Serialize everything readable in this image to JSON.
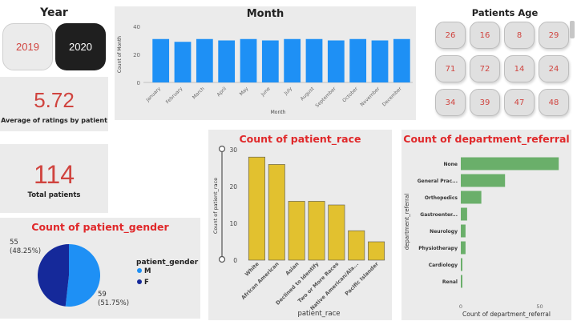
{
  "year_slicer": {
    "title": "Year",
    "options": [
      "2019",
      "2020"
    ],
    "selected": "2020"
  },
  "rating_card": {
    "value": "5.72",
    "label": "Average of ratings by patient"
  },
  "patients_card": {
    "value": "114",
    "label": "Total patients"
  },
  "age_slicer": {
    "title": "Patients Age",
    "values": [
      "26",
      "16",
      "8",
      "29",
      "71",
      "72",
      "14",
      "24",
      "34",
      "39",
      "47",
      "48"
    ]
  },
  "month_chart": {
    "title": "Month",
    "chart_data": {
      "type": "bar",
      "title": "Month",
      "xlabel": "Month",
      "ylabel": "Count of Month",
      "categories": [
        "January",
        "February",
        "March",
        "April",
        "May",
        "June",
        "July",
        "August",
        "September",
        "October",
        "November",
        "December"
      ],
      "values": [
        31,
        29,
        31,
        30,
        31,
        30,
        31,
        31,
        30,
        31,
        30,
        31
      ],
      "ylim": [
        0,
        40
      ],
      "yticks": [
        "0",
        "20",
        "40"
      ],
      "color": "#1e90f5"
    }
  },
  "race_chart": {
    "title": "Count of patient_race",
    "chart_data": {
      "type": "bar",
      "title": "Count of patient_race",
      "xlabel": "patient_race",
      "ylabel": "Count of patient_race",
      "categories": [
        "White",
        "African American",
        "Asian",
        "Declined to Identify",
        "Two or More Races",
        "Native American/Ala...",
        "Pacific Islander"
      ],
      "values": [
        28,
        26,
        16,
        16,
        15,
        8,
        5
      ],
      "ylim": [
        0,
        30
      ],
      "yticks": [
        "0",
        "10",
        "20",
        "30"
      ],
      "color": "#e2c12f"
    }
  },
  "dept_chart": {
    "title": "Count of department_referral",
    "chart_data": {
      "type": "bar",
      "orientation": "horizontal",
      "title": "Count of department_referral",
      "xlabel": "Count of department_referral",
      "ylabel": "department_referral",
      "categories": [
        "None",
        "General Prac...",
        "Orthopedics",
        "Gastroenter...",
        "Neurology",
        "Physiotherapy",
        "Cardiology",
        "Renal"
      ],
      "values": [
        62,
        28,
        13,
        4,
        3,
        3,
        1,
        1
      ],
      "xlim": [
        0,
        70
      ],
      "xticks": [
        "0",
        "50"
      ],
      "color": "#6aaf6a"
    }
  },
  "gender_chart": {
    "title": "Count of patient_gender",
    "legend_title": "patient_gender",
    "chart_data": {
      "type": "pie",
      "title": "Count of patient_gender",
      "categories": [
        "M",
        "F"
      ],
      "values": [
        59,
        55
      ],
      "labels": [
        "59\n(51.75%)",
        "55\n(48.25%)"
      ],
      "colors": [
        "#1e90f5",
        "#15299a"
      ]
    }
  }
}
